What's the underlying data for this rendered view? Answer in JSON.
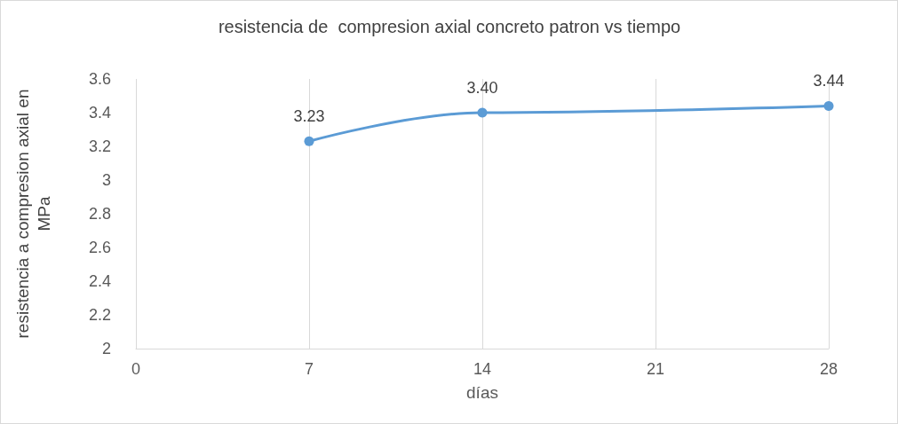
{
  "chart_data": {
    "type": "line",
    "title": "resistencia de  compresion axial concreto patron vs tiempo",
    "xlabel": "días",
    "ylabel": "resistencia a compresion axial en MPa",
    "x": [
      7,
      14,
      28
    ],
    "series": [
      {
        "color": "#5b9bd5",
        "values": [
          3.23,
          3.4,
          3.44
        ],
        "value_labels": [
          "3.23",
          "3.40",
          "3.44"
        ]
      }
    ],
    "xlim": [
      0,
      28
    ],
    "xticks": [
      0,
      7,
      14,
      21,
      28
    ],
    "ylim": [
      2,
      3.6
    ],
    "yticks": [
      2,
      2.2,
      2.4,
      2.6,
      2.8,
      3,
      3.2,
      3.4,
      3.6
    ],
    "grid": "x",
    "marker": "circle",
    "line_style": "solid"
  }
}
